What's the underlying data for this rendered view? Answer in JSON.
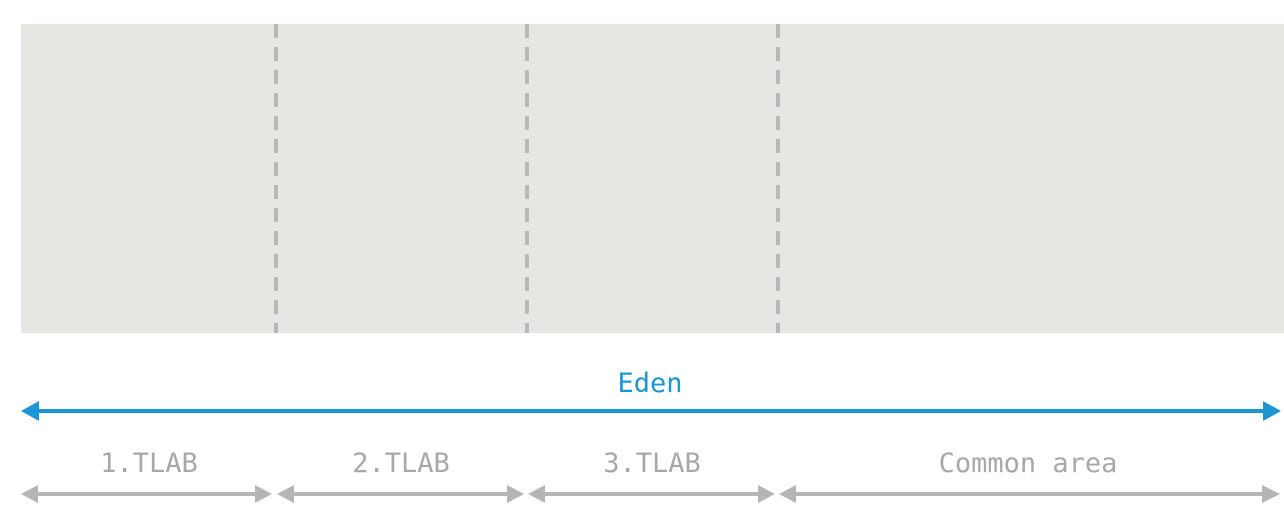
{
  "eden": {
    "label": "Eden",
    "color": "#1a96d0"
  },
  "region": {
    "fill": "#e8e6e3",
    "divider_color": "#b8b8b8"
  },
  "segments": [
    {
      "label": "1.TLAB"
    },
    {
      "label": "2.TLAB"
    },
    {
      "label": "3.TLAB"
    },
    {
      "label": "Common area"
    }
  ],
  "segment_arrow_color": "#b5b5b5",
  "segment_label_color": "#a8a8a8"
}
